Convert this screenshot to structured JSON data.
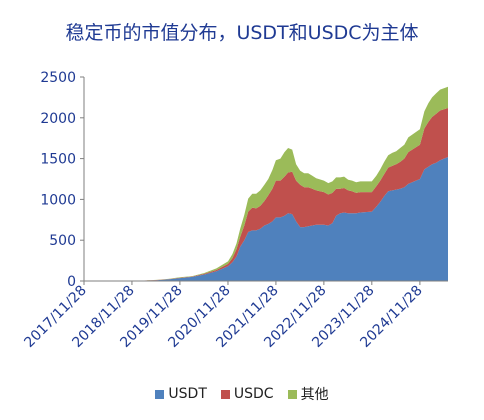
{
  "chart_data": {
    "type": "area",
    "stacked": true,
    "title": "稳定币的市值分布，USDT和USDC为主体",
    "xlabel": "",
    "ylabel": "",
    "ylim": [
      0,
      2500
    ],
    "y_ticks": [
      0,
      500,
      1000,
      1500,
      2000,
      2500
    ],
    "x_range": [
      "2017-11-28",
      "2025-06-30"
    ],
    "x_tick_labels": [
      "2017/11/28",
      "2018/11/28",
      "2019/11/28",
      "2020/11/28",
      "2021/11/28",
      "2022/11/28",
      "2023/11/28",
      "2024/11/28"
    ],
    "x_tick_dates": [
      "2017-11-28",
      "2018-11-28",
      "2019-11-28",
      "2020-11-28",
      "2021-11-28",
      "2022-11-28",
      "2023-11-28",
      "2024-11-28"
    ],
    "legend_position": "bottom",
    "grid": false,
    "dates": [
      "2017-11-28",
      "2018-03-01",
      "2018-06-01",
      "2018-09-01",
      "2018-11-28",
      "2019-03-01",
      "2019-06-01",
      "2019-09-01",
      "2019-11-28",
      "2020-03-01",
      "2020-06-01",
      "2020-09-01",
      "2020-11-28",
      "2021-01-01",
      "2021-02-01",
      "2021-03-01",
      "2021-04-01",
      "2021-05-01",
      "2021-06-01",
      "2021-07-01",
      "2021-08-01",
      "2021-09-01",
      "2021-10-01",
      "2021-11-01",
      "2021-11-28",
      "2022-01-01",
      "2022-02-01",
      "2022-03-01",
      "2022-04-01",
      "2022-05-01",
      "2022-06-01",
      "2022-07-01",
      "2022-08-01",
      "2022-09-01",
      "2022-10-01",
      "2022-11-28",
      "2023-01-01",
      "2023-02-01",
      "2023-03-01",
      "2023-04-01",
      "2023-05-01",
      "2023-06-01",
      "2023-07-01",
      "2023-08-01",
      "2023-09-01",
      "2023-11-28",
      "2024-01-01",
      "2024-02-01",
      "2024-03-01",
      "2024-04-01",
      "2024-05-01",
      "2024-06-01",
      "2024-07-01",
      "2024-08-01",
      "2024-09-01",
      "2024-11-28",
      "2025-01-01",
      "2025-02-01",
      "2025-03-01",
      "2025-04-01",
      "2025-05-01",
      "2025-06-30"
    ],
    "series": [
      {
        "name": "USDT",
        "color": "#4f81bd",
        "values": [
          3,
          3,
          3,
          3,
          3,
          5,
          10,
          20,
          35,
          50,
          80,
          120,
          180,
          230,
          300,
          420,
          500,
          600,
          620,
          620,
          640,
          680,
          700,
          730,
          780,
          780,
          800,
          830,
          820,
          730,
          660,
          660,
          670,
          680,
          690,
          690,
          680,
          710,
          800,
          830,
          840,
          830,
          830,
          830,
          840,
          850,
          910,
          970,
          1040,
          1100,
          1110,
          1120,
          1130,
          1150,
          1190,
          1250,
          1370,
          1400,
          1430,
          1450,
          1480,
          1520
        ]
      },
      {
        "name": "USDC",
        "color": "#c0504d",
        "values": [
          0,
          0,
          0,
          0,
          0,
          1,
          2,
          3,
          5,
          5,
          8,
          15,
          30,
          50,
          90,
          120,
          180,
          250,
          280,
          270,
          280,
          300,
          350,
          400,
          450,
          450,
          480,
          500,
          520,
          500,
          520,
          490,
          480,
          450,
          420,
          400,
          380,
          370,
          330,
          300,
          300,
          280,
          270,
          250,
          250,
          240,
          250,
          260,
          270,
          290,
          300,
          310,
          330,
          350,
          390,
          420,
          500,
          550,
          580,
          600,
          610,
          600
        ]
      },
      {
        "name": "其他",
        "color": "#9bbb59",
        "values": [
          0,
          0,
          0,
          0,
          0,
          0,
          2,
          3,
          5,
          5,
          10,
          20,
          30,
          50,
          70,
          100,
          130,
          160,
          170,
          180,
          190,
          200,
          200,
          230,
          250,
          270,
          300,
          300,
          270,
          200,
          170,
          170,
          170,
          160,
          150,
          140,
          140,
          140,
          140,
          140,
          140,
          130,
          130,
          130,
          130,
          130,
          130,
          140,
          150,
          150,
          160,
          160,
          170,
          170,
          180,
          190,
          210,
          230,
          240,
          250,
          255,
          260
        ]
      }
    ]
  }
}
